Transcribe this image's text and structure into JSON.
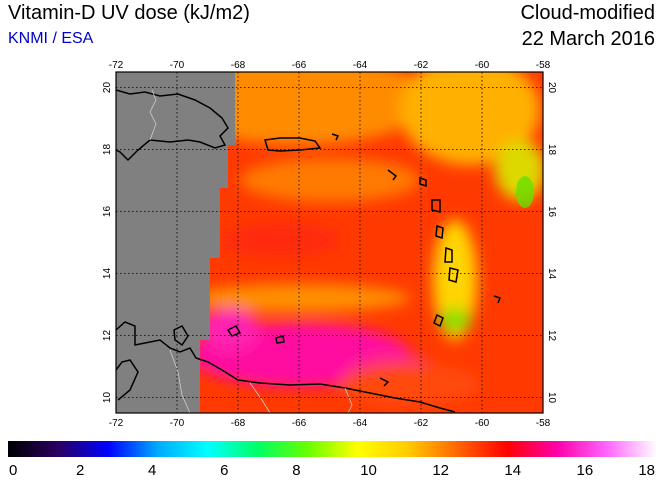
{
  "header": {
    "title": "Vitamin-D UV dose (kJ/m2)",
    "org": "KNMI / ESA",
    "product": "Cloud-modified",
    "date": "22 March 2016"
  },
  "map": {
    "lon_range": [
      -72,
      -58
    ],
    "lat_range": [
      9.5,
      20.5
    ],
    "lon_ticks": [
      "-72",
      "-70",
      "-68",
      "-66",
      "-64",
      "-62",
      "-60",
      "-58"
    ],
    "lat_ticks": [
      "10",
      "12",
      "14",
      "16",
      "18",
      "20"
    ],
    "grid": true,
    "no_data_color": "#808080"
  },
  "colorbar": {
    "ticks": [
      "0",
      "2",
      "4",
      "6",
      "8",
      "10",
      "12",
      "14",
      "16",
      "18"
    ],
    "range": [
      0,
      18
    ],
    "stops": [
      "#000000",
      "#2a0060",
      "#0000ff",
      "#00aaff",
      "#00ffff",
      "#00ff66",
      "#66ff00",
      "#ffff00",
      "#ffcc00",
      "#ff6600",
      "#ff0000",
      "#ff00aa",
      "#ff66ff",
      "#ffffff"
    ]
  }
}
